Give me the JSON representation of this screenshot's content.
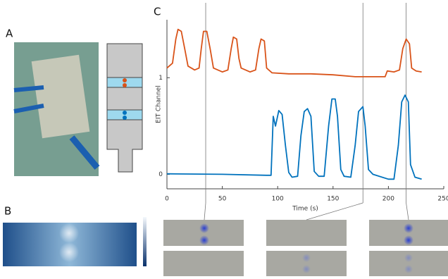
{
  "panels": [
    "A",
    "B",
    "C"
  ],
  "chart_data": {
    "type": "line",
    "xlabel": "Time (s)",
    "ylabel": "EIT Channel",
    "xlim": [
      0,
      250
    ],
    "xticks": [
      0,
      50,
      100,
      150,
      200,
      250
    ],
    "ylim": [
      -0.15,
      1.6
    ],
    "yticks": [
      0,
      1
    ],
    "markers": [
      35,
      177,
      216
    ],
    "series": [
      {
        "color": "#d95319",
        "x": [
          0,
          5,
          8,
          10,
          13,
          16,
          19,
          25,
          29,
          31,
          33,
          36,
          39,
          42,
          50,
          55,
          58,
          60,
          63,
          65,
          67,
          75,
          80,
          83,
          85,
          88,
          90,
          95,
          110,
          130,
          150,
          170,
          190,
          197,
          199,
          205,
          210,
          213,
          216,
          219,
          221,
          225,
          230
        ],
        "values": [
          1.1,
          1.15,
          1.4,
          1.5,
          1.48,
          1.3,
          1.12,
          1.08,
          1.1,
          1.3,
          1.48,
          1.48,
          1.3,
          1.1,
          1.06,
          1.08,
          1.3,
          1.42,
          1.4,
          1.2,
          1.1,
          1.06,
          1.08,
          1.3,
          1.4,
          1.38,
          1.1,
          1.05,
          1.04,
          1.04,
          1.03,
          1.01,
          1.01,
          1.01,
          1.07,
          1.06,
          1.08,
          1.3,
          1.4,
          1.35,
          1.1,
          1.07,
          1.06
        ]
      },
      {
        "color": "#0072bd",
        "x": [
          0,
          50,
          90,
          94,
          96,
          98,
          101,
          104,
          107,
          110,
          113,
          118,
          121,
          124,
          127,
          130,
          133,
          137,
          142,
          146,
          149,
          152,
          154,
          157,
          160,
          166,
          170,
          173,
          177,
          179,
          182,
          186,
          200,
          205,
          209,
          212,
          215,
          218,
          220,
          224,
          230
        ],
        "values": [
          0.005,
          0,
          -0.01,
          -0.01,
          0.6,
          0.5,
          0.66,
          0.62,
          0.3,
          0.02,
          -0.03,
          -0.02,
          0.4,
          0.65,
          0.68,
          0.6,
          0.03,
          -0.02,
          -0.02,
          0.5,
          0.78,
          0.78,
          0.6,
          0.05,
          -0.02,
          -0.03,
          0.3,
          0.65,
          0.7,
          0.5,
          0.05,
          0,
          -0.05,
          -0.05,
          0.3,
          0.75,
          0.82,
          0.75,
          0.1,
          -0.03,
          -0.05
        ]
      }
    ]
  }
}
